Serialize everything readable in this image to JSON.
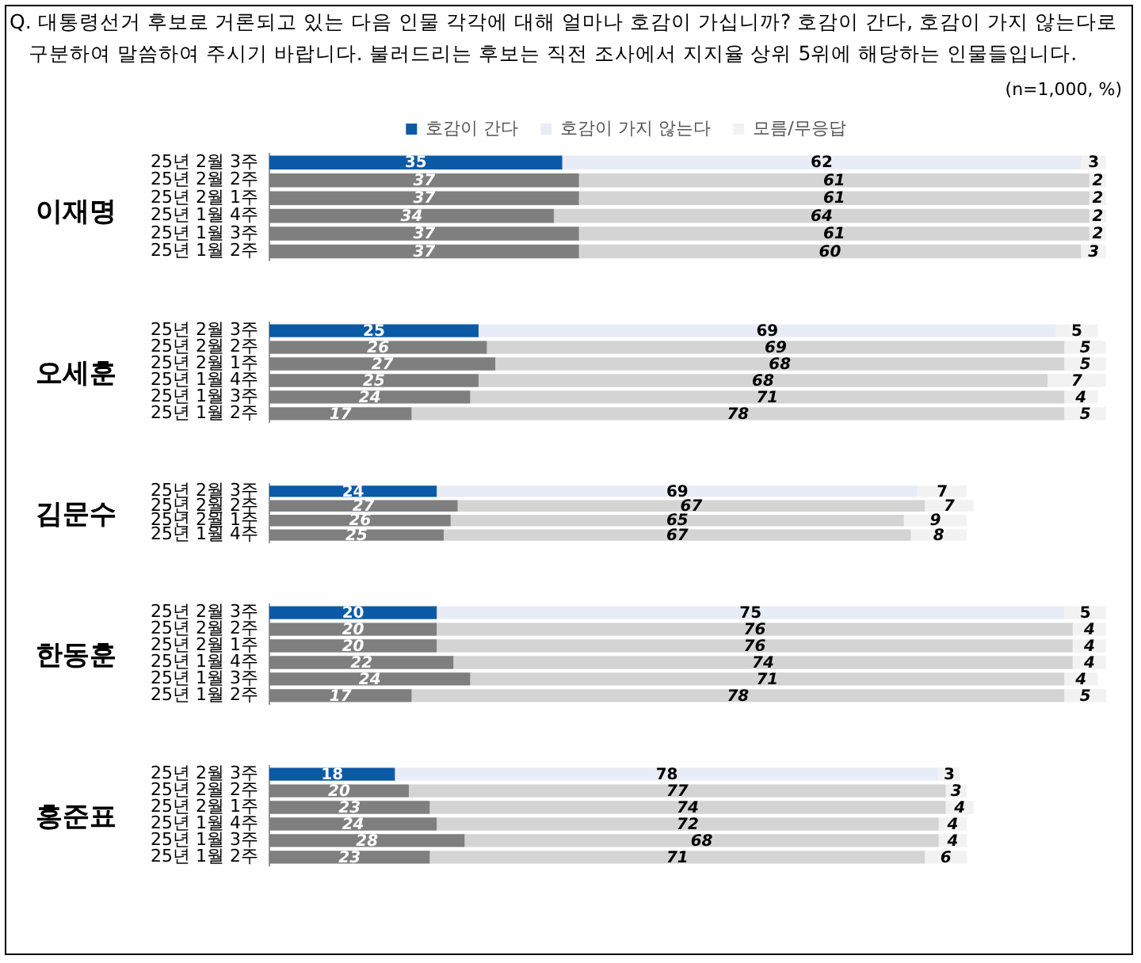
{
  "chart_data": [
    {
      "type": "bar",
      "orientation": "horizontal",
      "stacked": true,
      "title": "Q. 대통령선거 후보로 거론되고 있는 다음 인물 각각에 대해 얼마나 호감이 가십니까? 호감이 간다, 호감이 가지 않는다로 구분하여 말씀하여 주시기 바랍니다. 불러드리는 후보는 직전 조사에서 지지율 상위 5위에 해당하는 인물들입니다.",
      "annotations": [
        "(n=1,000,  %)"
      ],
      "legend": "top",
      "ylabel": "이재명",
      "categories": [
        "25년 2월 3주",
        "25년 2월 2주",
        "25년 2월 1주",
        "25년 1월 4주",
        "25년 1월 3주",
        "25년 1월 2주"
      ],
      "tick_labels": "y",
      "data_labels": true,
      "series": [
        {
          "name": "호감이 간다",
          "color": "#0b5aa6",
          "colors": [
            "#0b5aa6",
            "#7f7f7f",
            "#7f7f7f",
            "#7f7f7f",
            "#7f7f7f",
            "#7f7f7f"
          ],
          "values": [
            35,
            37,
            37,
            34,
            37,
            37
          ]
        },
        {
          "name": "호감이 가지 않는다",
          "color": "#e8ecf7",
          "colors": [
            "#e8ecf7",
            "#d4d4d4",
            "#d4d4d4",
            "#d4d4d4",
            "#d4d4d4",
            "#d4d4d4"
          ],
          "values": [
            62,
            61,
            61,
            64,
            61,
            60
          ]
        },
        {
          "name": "모름/무응답",
          "color": "#f2f2f2",
          "colors": [
            "#f2f2f2",
            "#f2f2f2",
            "#f2f2f2",
            "#f2f2f2",
            "#f2f2f2",
            "#f2f2f2"
          ],
          "values": [
            3,
            2,
            2,
            2,
            2,
            3
          ]
        }
      ]
    },
    {
      "type": "bar",
      "orientation": "horizontal",
      "stacked": true,
      "ylabel": "오세훈",
      "categories": [
        "25년 2월 3주",
        "25년 2월 2주",
        "25년 2월 1주",
        "25년 1월 4주",
        "25년 1월 3주",
        "25년 1월 2주"
      ],
      "tick_labels": "y",
      "data_labels": true,
      "series": [
        {
          "color": "#0b5aa6",
          "colors": [
            "#0b5aa6",
            "#7f7f7f",
            "#7f7f7f",
            "#7f7f7f",
            "#7f7f7f",
            "#7f7f7f"
          ],
          "values": [
            25,
            26,
            27,
            25,
            24,
            17
          ]
        },
        {
          "color": "#e8ecf7",
          "colors": [
            "#e8ecf7",
            "#d4d4d4",
            "#d4d4d4",
            "#d4d4d4",
            "#d4d4d4",
            "#d4d4d4"
          ],
          "values": [
            69,
            69,
            68,
            68,
            71,
            78
          ]
        },
        {
          "color": "#f2f2f2",
          "colors": [
            "#f2f2f2",
            "#f2f2f2",
            "#f2f2f2",
            "#f2f2f2",
            "#f2f2f2",
            "#f2f2f2"
          ],
          "values": [
            5,
            5,
            5,
            7,
            4,
            5
          ]
        }
      ]
    },
    {
      "type": "bar",
      "orientation": "horizontal",
      "stacked": true,
      "ylabel": "김문수",
      "categories": [
        "25년 2월 3주",
        "25년 2월 2주",
        "25년 2월 1주",
        "25년 1월 4주"
      ],
      "tick_labels": "y",
      "data_labels": true,
      "series": [
        {
          "color": "#0b5aa6",
          "colors": [
            "#0b5aa6",
            "#7f7f7f",
            "#7f7f7f",
            "#7f7f7f"
          ],
          "values": [
            24,
            27,
            26,
            25
          ]
        },
        {
          "color": "#e8ecf7",
          "colors": [
            "#e8ecf7",
            "#d4d4d4",
            "#d4d4d4",
            "#d4d4d4"
          ],
          "values": [
            69,
            67,
            65,
            67
          ]
        },
        {
          "color": "#f2f2f2",
          "colors": [
            "#f2f2f2",
            "#f2f2f2",
            "#f2f2f2",
            "#f2f2f2"
          ],
          "values": [
            7,
            7,
            9,
            8
          ]
        }
      ]
    },
    {
      "type": "bar",
      "orientation": "horizontal",
      "stacked": true,
      "ylabel": "한동훈",
      "categories": [
        "25년 2월 3주",
        "25년 2월 2주",
        "25년 2월 1주",
        "25년 1월 4주",
        "25년 1월 3주",
        "25년 1월 2주"
      ],
      "tick_labels": "y",
      "data_labels": true,
      "series": [
        {
          "color": "#0b5aa6",
          "colors": [
            "#0b5aa6",
            "#7f7f7f",
            "#7f7f7f",
            "#7f7f7f",
            "#7f7f7f",
            "#7f7f7f"
          ],
          "values": [
            20,
            20,
            20,
            22,
            24,
            17
          ]
        },
        {
          "color": "#e8ecf7",
          "colors": [
            "#e8ecf7",
            "#d4d4d4",
            "#d4d4d4",
            "#d4d4d4",
            "#d4d4d4",
            "#d4d4d4"
          ],
          "values": [
            75,
            76,
            76,
            74,
            71,
            78
          ]
        },
        {
          "color": "#f2f2f2",
          "colors": [
            "#f2f2f2",
            "#f2f2f2",
            "#f2f2f2",
            "#f2f2f2",
            "#f2f2f2",
            "#f2f2f2"
          ],
          "values": [
            5,
            4,
            4,
            4,
            4,
            5
          ]
        }
      ]
    },
    {
      "type": "bar",
      "orientation": "horizontal",
      "stacked": true,
      "ylabel": "홍준표",
      "categories": [
        "25년 2월 3주",
        "25년 2월 2주",
        "25년 2월 1주",
        "25년 1월 4주",
        "25년 1월 3주",
        "25년 1월 2주"
      ],
      "tick_labels": "y",
      "data_labels": true,
      "series": [
        {
          "color": "#0b5aa6",
          "colors": [
            "#0b5aa6",
            "#7f7f7f",
            "#7f7f7f",
            "#7f7f7f",
            "#7f7f7f",
            "#7f7f7f"
          ],
          "values": [
            18,
            20,
            23,
            24,
            28,
            23
          ]
        },
        {
          "color": "#e8ecf7",
          "colors": [
            "#e8ecf7",
            "#d4d4d4",
            "#d4d4d4",
            "#d4d4d4",
            "#d4d4d4",
            "#d4d4d4"
          ],
          "values": [
            78,
            77,
            74,
            72,
            68,
            71
          ]
        },
        {
          "color": "#f2f2f2",
          "colors": [
            "#f2f2f2",
            "#f2f2f2",
            "#f2f2f2",
            "#f2f2f2",
            "#f2f2f2",
            "#f2f2f2"
          ],
          "values": [
            3,
            3,
            4,
            4,
            4,
            6
          ]
        }
      ]
    }
  ]
}
